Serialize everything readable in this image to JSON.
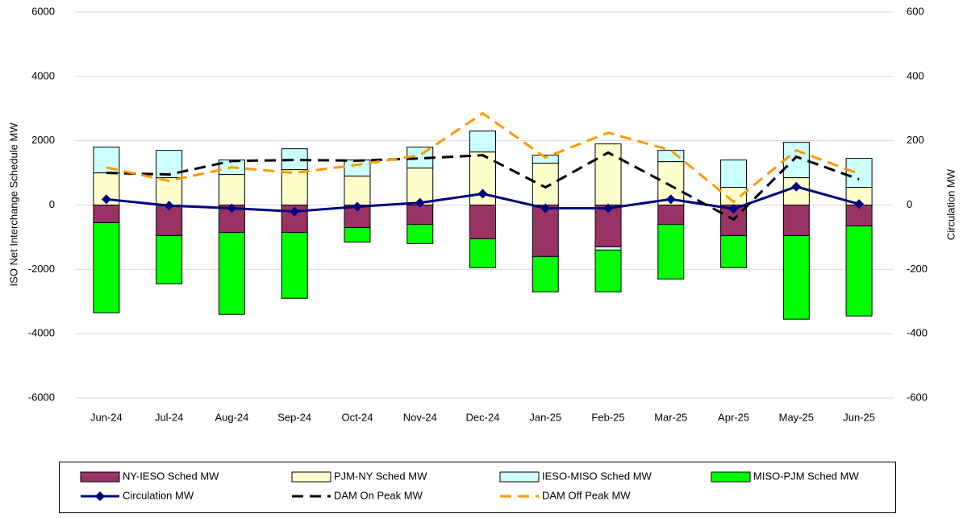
{
  "chart_data": {
    "type": "bar",
    "y_label": "ISO Net Interchange Schedule MW",
    "y2_label": "Circulation MW",
    "categories": [
      "Jun-24",
      "Jul-24",
      "Aug-24",
      "Sep-24",
      "Oct-24",
      "Nov-24",
      "Dec-24",
      "Jan-25",
      "Feb-25",
      "Mar-25",
      "Apr-25",
      "May-25",
      "Jun-25"
    ],
    "ylim": [
      -6000,
      6000
    ],
    "yticks": [
      -6000,
      -4000,
      -2000,
      0,
      2000,
      4000,
      6000
    ],
    "y2lim": [
      -600,
      600
    ],
    "y2ticks": [
      -600,
      -400,
      -200,
      0,
      200,
      400,
      600
    ],
    "grid": true,
    "stacked": true,
    "series": [
      {
        "name": "NY-IESO Sched MW",
        "type": "bar",
        "color": "#993366",
        "values": [
          -550,
          -950,
          -850,
          -850,
          -700,
          -600,
          -1050,
          -1600,
          -1300,
          -600,
          -950,
          -950,
          -650
        ]
      },
      {
        "name": "PJM-NY Sched MW",
        "type": "bar",
        "color": "#ffffcc",
        "values": [
          1000,
          850,
          950,
          1100,
          900,
          1150,
          1650,
          1300,
          1900,
          1350,
          550,
          850,
          550
        ]
      },
      {
        "name": "IESO-MISO Sched MW",
        "type": "bar",
        "color": "#ccffff",
        "values": [
          800,
          850,
          450,
          650,
          500,
          650,
          650,
          250,
          -100,
          350,
          850,
          1100,
          900
        ]
      },
      {
        "name": "MISO-PJM Sched MW",
        "type": "bar",
        "color": "#00ff00",
        "values": [
          -2800,
          -1500,
          -2550,
          -2050,
          -450,
          -600,
          -900,
          -1100,
          -1300,
          -1700,
          -1000,
          -2600,
          -2800
        ]
      },
      {
        "name": "Circulation MW",
        "type": "line",
        "axis": "y2",
        "color": "#000080",
        "marker": "diamond",
        "values": [
          18,
          -2,
          -10,
          -20,
          -5,
          7,
          35,
          -10,
          -10,
          18,
          -12,
          57,
          3
        ]
      },
      {
        "name": "DAM On Peak MW",
        "type": "line",
        "axis": "y2",
        "color": "#000000",
        "dashed": true,
        "values": [
          100,
          95,
          137,
          140,
          138,
          145,
          155,
          55,
          163,
          60,
          -45,
          150,
          80
        ]
      },
      {
        "name": "DAM Off Peak MW",
        "type": "line",
        "axis": "y2",
        "color": "#ff9900",
        "dashed": true,
        "values": [
          117,
          75,
          117,
          100,
          125,
          155,
          285,
          148,
          225,
          170,
          10,
          170,
          97
        ]
      }
    ]
  }
}
